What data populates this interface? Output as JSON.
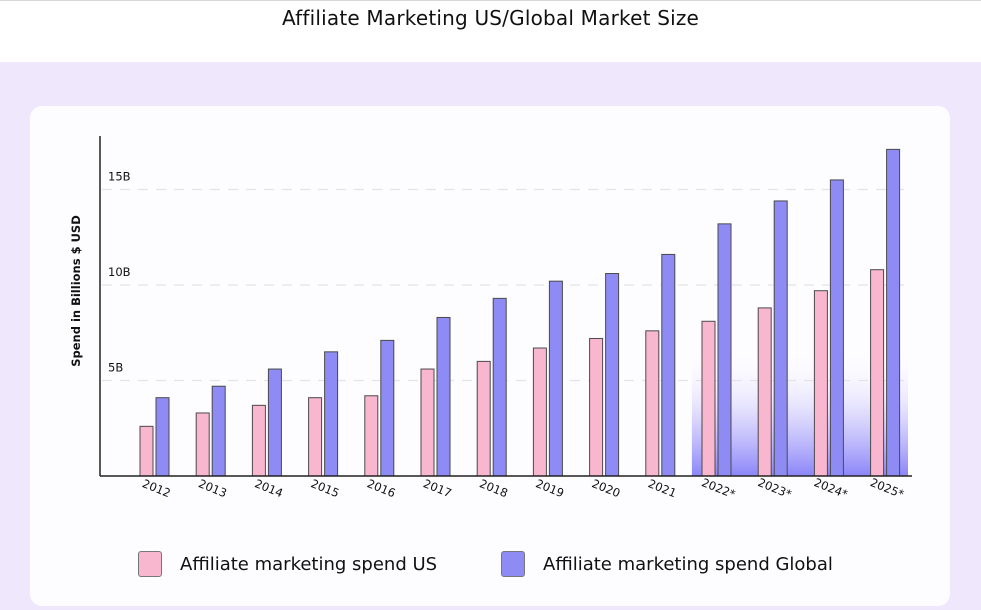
{
  "title": "Affiliate Marketing US/Global Market Size",
  "colors": {
    "us": "#f9b6cf",
    "global": "#8f8bf4",
    "highlight": "#8b85f8",
    "band": "#efe8fd"
  },
  "legend": {
    "us_label": "Affiliate marketing spend US",
    "global_label": "Affiliate marketing spend Global"
  },
  "chart_data": {
    "type": "bar",
    "title": "Affiliate Marketing US/Global Market Size",
    "xlabel": "",
    "ylabel": "Spend in Billions $ USD",
    "ylim": [
      0,
      17.8
    ],
    "yticks": [
      {
        "value": 5,
        "label": "5B"
      },
      {
        "value": 10,
        "label": "10B"
      },
      {
        "value": 15,
        "label": "15B"
      }
    ],
    "grid": "dashed horizontal",
    "legend_position": "bottom",
    "categories": [
      "2012",
      "2013",
      "2014",
      "2015",
      "2016",
      "2017",
      "2018",
      "2019",
      "2020",
      "2021",
      "2022*",
      "2023*",
      "2024*",
      "2025*"
    ],
    "highlighted_categories": [
      "2022*",
      "2023*",
      "2024*",
      "2025*"
    ],
    "series": [
      {
        "name": "Affiliate marketing spend US",
        "values": [
          2.6,
          3.3,
          3.7,
          4.1,
          4.2,
          5.6,
          6.0,
          6.7,
          7.2,
          7.6,
          8.1,
          8.8,
          9.7,
          10.8
        ]
      },
      {
        "name": "Affiliate marketing spend Global",
        "values": [
          4.1,
          4.7,
          5.6,
          6.5,
          7.1,
          8.3,
          9.3,
          10.2,
          10.6,
          11.6,
          13.2,
          14.4,
          15.5,
          17.1
        ]
      }
    ]
  }
}
